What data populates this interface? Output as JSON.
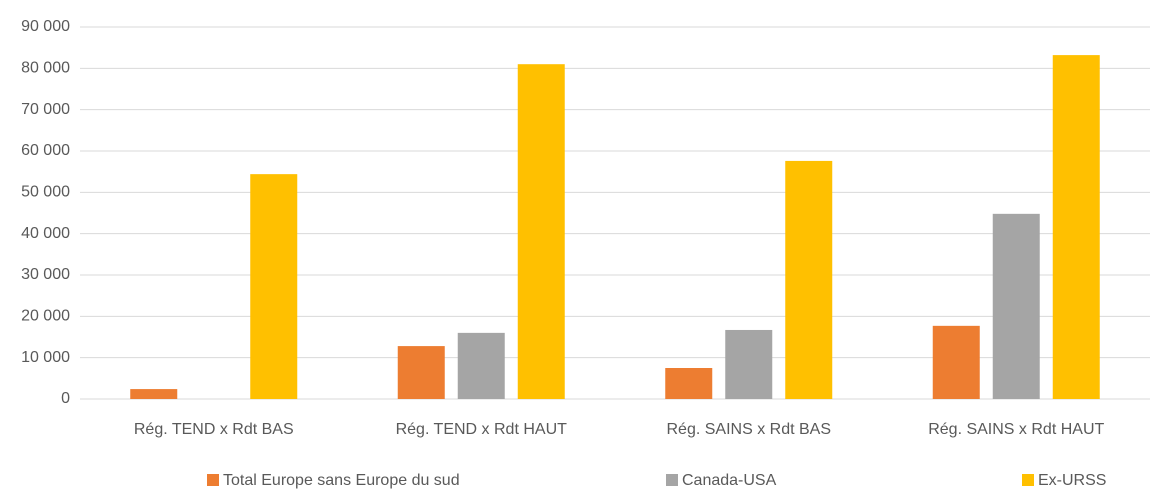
{
  "chart_data": {
    "type": "bar",
    "categories": [
      "Rég. TEND x Rdt BAS",
      "Rég. TEND x Rdt HAUT",
      "Rég. SAINS x Rdt BAS",
      "Rég. SAINS x Rdt HAUT"
    ],
    "series": [
      {
        "name": "Total Europe sans Europe du sud",
        "color": "#ed7d31",
        "values": [
          2400,
          12800,
          7500,
          17700
        ]
      },
      {
        "name": "Canada-USA",
        "color": "#a5a5a5",
        "values": [
          0,
          16000,
          16700,
          44800
        ]
      },
      {
        "name": "Ex-URSS",
        "color": "#ffc000",
        "values": [
          54400,
          81000,
          57600,
          83200
        ]
      }
    ],
    "ylim": [
      0,
      90000
    ],
    "yticks": [
      0,
      {
        "value": 10000,
        "label": "10 000"
      },
      {
        "value": 20000,
        "label": "20 000"
      },
      {
        "value": 30000,
        "label": "30 000"
      },
      {
        "value": 40000,
        "label": "40 000"
      },
      {
        "value": 50000,
        "label": "50 000"
      },
      {
        "value": 60000,
        "label": "60 000"
      },
      {
        "value": 70000,
        "label": "70 000"
      },
      {
        "value": 80000,
        "label": "80 000"
      },
      {
        "value": 90000,
        "label": "90 000"
      }
    ],
    "grid": true,
    "legend": "bottom"
  }
}
